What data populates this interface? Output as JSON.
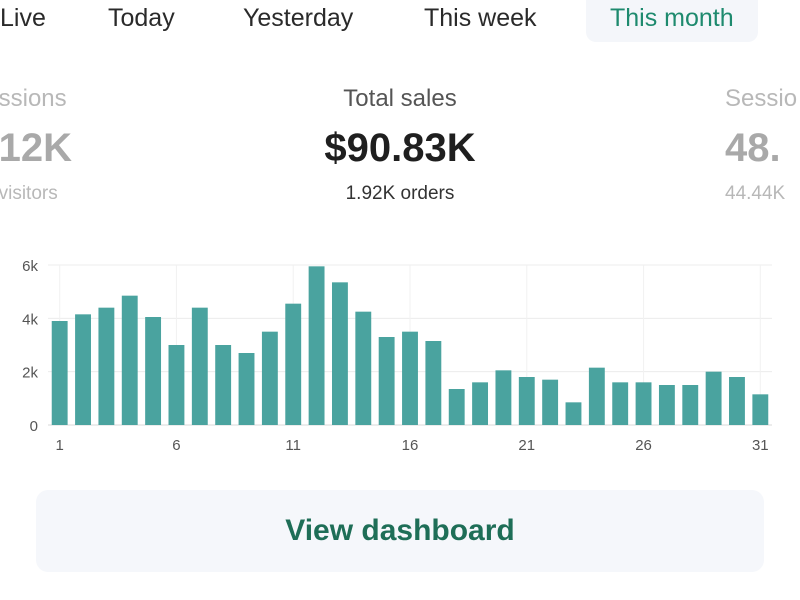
{
  "tabs": [
    {
      "label": "Live",
      "active": false
    },
    {
      "label": "Today",
      "active": false
    },
    {
      "label": "Yesterday",
      "active": false
    },
    {
      "label": "This week",
      "active": false
    },
    {
      "label": "This month",
      "active": true
    }
  ],
  "metrics": {
    "left": {
      "label": "ssions",
      "value": "12K",
      "sub": "visitors"
    },
    "center": {
      "label": "Total sales",
      "value": "$90.83K",
      "sub": "1.92K orders"
    },
    "right": {
      "label": "Sessio",
      "value": "48.",
      "sub": "44.44K"
    }
  },
  "chart_data": {
    "type": "bar",
    "title": "",
    "xlabel": "",
    "ylabel": "",
    "categories": [
      1,
      2,
      3,
      4,
      5,
      6,
      7,
      8,
      9,
      10,
      11,
      12,
      13,
      14,
      15,
      16,
      17,
      18,
      19,
      20,
      21,
      22,
      23,
      24,
      25,
      26,
      27,
      28,
      29,
      30,
      31
    ],
    "values": [
      3900,
      4150,
      4400,
      4850,
      4050,
      3000,
      4400,
      3000,
      2700,
      3500,
      4550,
      5950,
      5350,
      4250,
      3300,
      3500,
      3150,
      1350,
      1600,
      2050,
      1800,
      1700,
      850,
      2150,
      1600,
      1600,
      1500,
      1500,
      2000,
      1800,
      1150
    ],
    "ylim": [
      0,
      6000
    ],
    "ytick_labels": [
      "0",
      "2k",
      "4k",
      "6k"
    ],
    "xtick_labels": [
      "1",
      "6",
      "11",
      "16",
      "21",
      "26",
      "31"
    ],
    "bar_color": "#4aa39f"
  },
  "button": {
    "label": "View dashboard"
  },
  "colors": {
    "accent": "#1e8a6e",
    "button_text": "#1e6e57"
  }
}
